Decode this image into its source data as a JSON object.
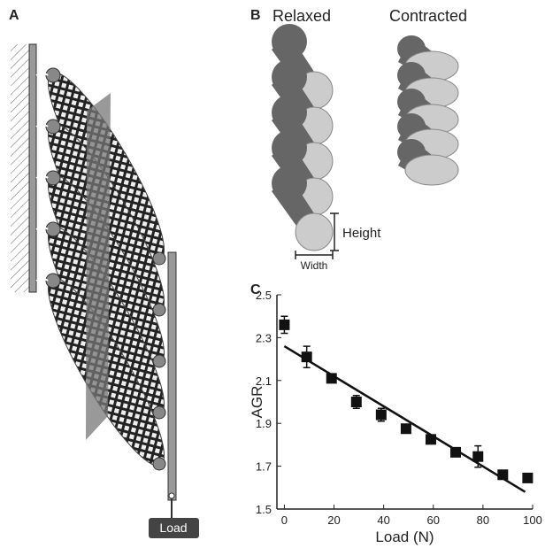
{
  "panels": {
    "a": {
      "label": "A",
      "load": "Load"
    },
    "b": {
      "label": "B",
      "relaxed": "Relaxed",
      "contracted": "Contracted",
      "height": "Height",
      "width": "Width"
    },
    "c": {
      "label": "C"
    }
  },
  "chart_data": {
    "type": "scatter",
    "x_label": "Load (N)",
    "y_label": "AGR",
    "x": [
      0,
      9,
      19,
      29,
      39,
      49,
      59,
      69,
      78,
      88,
      98
    ],
    "values": [
      2.36,
      2.21,
      2.11,
      2.0,
      1.94,
      1.875,
      1.825,
      1.765,
      1.745,
      1.66,
      1.645
    ],
    "errors": [
      0.04,
      0.05,
      0.01,
      0.03,
      0.03,
      0.01,
      0.02,
      0.01,
      0.05,
      0.01,
      0.01
    ],
    "color": "#111111",
    "fit": {
      "x": [
        0,
        97
      ],
      "values": [
        2.26,
        1.58
      ]
    },
    "xlim": [
      -3,
      100
    ],
    "xticks": [
      0,
      20,
      40,
      60,
      80,
      100
    ],
    "ylim": [
      1.5,
      2.5
    ],
    "yticks": [
      1.5,
      1.7,
      1.9,
      2.1,
      2.3,
      2.5
    ]
  }
}
